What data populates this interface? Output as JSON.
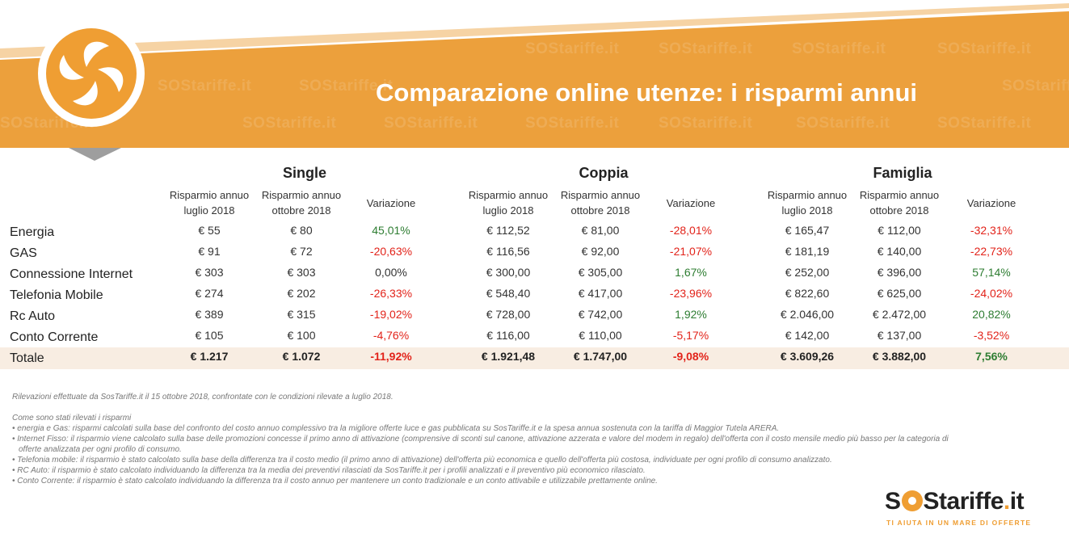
{
  "header": {
    "title": "Comparazione online utenze: i risparmi annui",
    "watermark_text": "SOStariffe.it",
    "colors": {
      "banner": "#eca03c",
      "stripe_light": "#f6d3a4",
      "arrow": "#9e9e9e"
    },
    "logo_icon": "fan-icon"
  },
  "groups": [
    "Single",
    "Coppia",
    "Famiglia"
  ],
  "column_headers": {
    "jul": "Risparmio annuo luglio 2018",
    "oct": "Risparmio annuo ottobre 2018",
    "var": "Variazione"
  },
  "rows": [
    {
      "label": "Energia",
      "values": [
        "€ 55",
        "€ 80",
        "45,01%",
        "€ 112,52",
        "€ 81,00",
        "-28,01%",
        "€ 165,47",
        "€ 112,00",
        "-32,31%"
      ]
    },
    {
      "label": "GAS",
      "values": [
        "€ 91",
        "€ 72",
        "-20,63%",
        "€ 116,56",
        "€ 92,00",
        "-21,07%",
        "€ 181,19",
        "€ 140,00",
        "-22,73%"
      ]
    },
    {
      "label": "Connessione Internet",
      "values": [
        "€ 303",
        "€ 303",
        "0,00%",
        "€ 300,00",
        "€ 305,00",
        "1,67%",
        "€ 252,00",
        "€ 396,00",
        "57,14%"
      ]
    },
    {
      "label": "Telefonia Mobile",
      "values": [
        "€ 274",
        "€ 202",
        "-26,33%",
        "€ 548,40",
        "€ 417,00",
        "-23,96%",
        "€ 822,60",
        "€ 625,00",
        "-24,02%"
      ]
    },
    {
      "label": "Rc Auto",
      "values": [
        "€ 389",
        "€ 315",
        "-19,02%",
        "€ 728,00",
        "€ 742,00",
        "1,92%",
        "€ 2.046,00",
        "€ 2.472,00",
        "20,82%"
      ]
    },
    {
      "label": "Conto Corrente",
      "values": [
        "€ 105",
        "€ 100",
        "-4,76%",
        "€ 116,00",
        "€ 110,00",
        "-5,17%",
        "€ 142,00",
        "€ 137,00",
        "-3,52%"
      ]
    },
    {
      "label": "Totale",
      "values": [
        "€ 1.217",
        "€ 1.072",
        "-11,92%",
        "€ 1.921,48",
        "€ 1.747,00",
        "-9,08%",
        "€ 3.609,26",
        "€ 3.882,00",
        "7,56%"
      ]
    }
  ],
  "notes": {
    "source": "Rilevazioni effettuate da SosTariffe.it il 15 ottobre 2018, confrontate con le condizioni rilevate a luglio 2018.",
    "heading": "Come sono stati rilevati i risparmi",
    "bullets": [
      "• energia e Gas: risparmi calcolati sulla base del confronto del costo annuo complessivo tra la migliore offerte luce e gas pubblicata su SosTariffe.it e la spesa annua sostenuta con la tariffa di Maggior Tutela ARERA.",
      "• Internet Fisso: il risparmio viene calcolato sulla base delle promozioni concesse il primo anno di attivazione (comprensive di sconti sul canone, attivazione azzerata e valore del modem in regalo) dell'offerta con il costo mensile medio più basso per la categoria di",
      "offerte analizzata per ogni profilo di consumo.",
      "• Telefonia mobile: il risparmio è stato calcolato sulla base della differenza tra il costo medio (il primo anno di attivazione) dell'offerta più economica e quello dell'offerta più costosa, individuate per ogni profilo di consumo analizzato.",
      "• RC Auto: il risparmio è stato calcolato individuando la differenza tra la media dei preventivi rilasciati da SosTariffe.it per i profili analizzati e il preventivo più economico rilasciato.",
      "• Conto Corrente: il risparmio è stato calcolato individuando la differenza tra il costo annuo per mantenere un conto tradizionale e un conto attivabile e utilizzabile prettamente online."
    ]
  },
  "brand": {
    "s1": "S",
    "s2": "S",
    "word": "tariffe",
    "dot": ".",
    "tld": "it",
    "tagline": "TI AIUTA IN UN MARE DI OFFERTE",
    "color": "#ef9e33"
  }
}
